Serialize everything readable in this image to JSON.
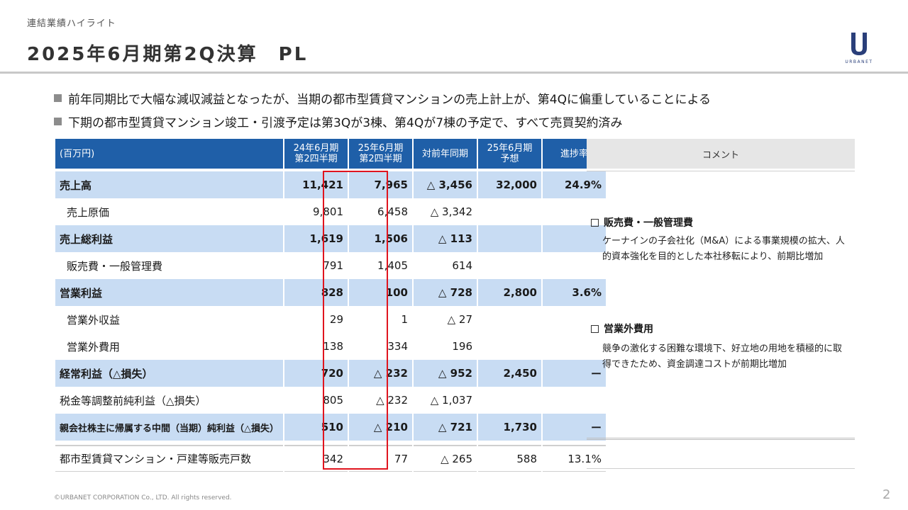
{
  "header": {
    "breadcrumb": "連結業績ハイライト",
    "title": "2025年6月期第2Q決算　PL",
    "logo_text": "URBANET",
    "logo_letter": "U"
  },
  "bullets": [
    "前年同期比で大幅な減収減益となったが、当期の都市型賃貸マンションの売上計上が、第4Qに偏重していることによる",
    "下期の都市型賃貸マンション竣工・引渡予定は第3Qが3棟、第4Qが7棟の予定で、すべて売買契約済み"
  ],
  "table": {
    "headers": {
      "unit": "(百万円)",
      "prev_line1": "24年6月期",
      "prev_line2": "第2四半期",
      "curr_line1": "25年6月期",
      "curr_line2": "第2四半期",
      "yoy": "対前年同期",
      "fcst_line1": "25年6月期",
      "fcst_line2": "予想",
      "progress": "進捗率"
    },
    "rows": [
      {
        "label": "売上高",
        "prev": "11,421",
        "curr": "7,965",
        "yoy": "△ 3,456",
        "fcst": "32,000",
        "prog": "24.9%"
      },
      {
        "label": "売上原価",
        "prev": "9,801",
        "curr": "6,458",
        "yoy": "△ 3,342",
        "fcst": "",
        "prog": ""
      },
      {
        "label": "売上総利益",
        "prev": "1,619",
        "curr": "1,506",
        "yoy": "△ 113",
        "fcst": "",
        "prog": ""
      },
      {
        "label": "販売費・一般管理費",
        "prev": "791",
        "curr": "1,405",
        "yoy": "614",
        "fcst": "",
        "prog": ""
      },
      {
        "label": "営業利益",
        "prev": "828",
        "curr": "100",
        "yoy": "△ 728",
        "fcst": "2,800",
        "prog": "3.6%"
      },
      {
        "label": "営業外収益",
        "prev": "29",
        "curr": "1",
        "yoy": "△ 27",
        "fcst": "",
        "prog": ""
      },
      {
        "label": "営業外費用",
        "prev": "138",
        "curr": "334",
        "yoy": "196",
        "fcst": "",
        "prog": ""
      },
      {
        "label": "経常利益（△損失）",
        "prev": "720",
        "curr": "△ 232",
        "yoy": "△ 952",
        "fcst": "2,450",
        "prog": "ー"
      },
      {
        "label": "税金等調整前純利益（△損失）",
        "prev": "805",
        "curr": "△ 232",
        "yoy": "△ 1,037",
        "fcst": "",
        "prog": ""
      },
      {
        "label": "親会社株主に帰属する中間（当期）純利益（△損失）",
        "prev": "510",
        "curr": "△ 210",
        "yoy": "△ 721",
        "fcst": "1,730",
        "prog": "ー"
      },
      {
        "label": "都市型賃貸マンション・戸建等販売戸数",
        "prev": "342",
        "curr": "77",
        "yoy": "△ 265",
        "fcst": "588",
        "prog": "13.1%"
      }
    ]
  },
  "comments": {
    "header": "コメント",
    "items": [
      {
        "title": "販売費・一般管理費",
        "text": "ケーナインの子会社化（M&A）による事業規模の拡大、人的資本強化を目的とした本社移転により、前期比増加"
      },
      {
        "title": "営業外費用",
        "text": "競争の激化する困難な環境下、好立地の用地を積極的に取得できたため、資金調達コストが前期比増加"
      }
    ]
  },
  "footer": {
    "copyright": "©URBANET CORPORATION Co., LTD. All rights reserved.",
    "page": "2"
  },
  "colors": {
    "header_blue": "#1f5fa8",
    "row_highlight": "#c8dcf3",
    "red_box": "#e0141e"
  }
}
